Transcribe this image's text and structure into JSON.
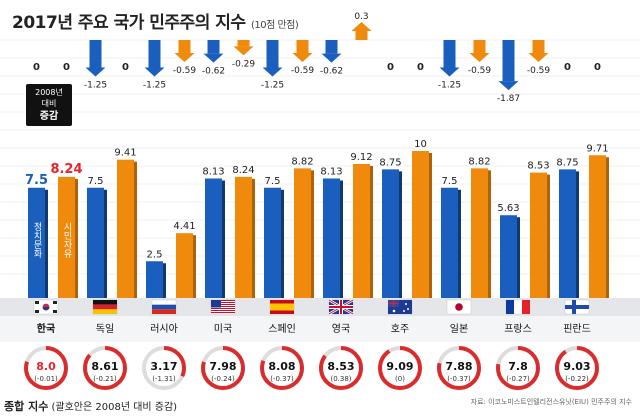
{
  "header": {
    "title": "2017년 주요 국가 민주주의 지수",
    "title_note": "(10점 만점)"
  },
  "legend": {
    "change_box_lines": [
      "2008년",
      "대비"
    ],
    "change_box_bold": "증감",
    "political_culture": "정치문화",
    "civil_liberties": "시민자유"
  },
  "footer": {
    "label": "종합 지수",
    "note": "(괄호안은 2008년 대비 증감)",
    "source": "자료: 이코노미스트인텔리전스유닛(EIU) 민주주의 지수"
  },
  "colors": {
    "political_culture": "#1a5fbd",
    "civil_liberties": "#f08a0c",
    "highlight_value": "#e8242b",
    "ring_red": "#d92d2d"
  },
  "chart_data": {
    "type": "bar",
    "ylim": [
      0,
      10
    ],
    "categories": [
      "한국",
      "독일",
      "러시아",
      "미국",
      "스페인",
      "영국",
      "호주",
      "일본",
      "프랑스",
      "핀란드"
    ],
    "flags": [
      "korea",
      "germany",
      "russia",
      "usa",
      "spain",
      "uk",
      "australia",
      "japan",
      "france",
      "finland"
    ],
    "series": [
      {
        "name": "정치문화",
        "values": [
          7.5,
          7.5,
          2.5,
          8.13,
          7.5,
          8.13,
          8.75,
          7.5,
          5.63,
          8.75
        ],
        "labels": [
          "7.5",
          "7.5",
          "2.5",
          "8.13",
          "7.5",
          "8.13",
          "8.75",
          "7.5",
          "5.63",
          "8.75"
        ],
        "change": [
          0,
          -1.25,
          -1.25,
          -0.62,
          -1.25,
          -0.62,
          0,
          -1.25,
          -1.87,
          0
        ],
        "change_labels": [
          "0",
          "-1.25",
          "-1.25",
          "-0.62",
          "-1.25",
          "-0.62",
          "0",
          "-1.25",
          "-1.87",
          "0"
        ]
      },
      {
        "name": "시민자유",
        "values": [
          8.24,
          9.41,
          4.41,
          8.24,
          8.82,
          9.12,
          10,
          8.82,
          8.53,
          9.71
        ],
        "labels": [
          "8.24",
          "9.41",
          "4.41",
          "8.24",
          "8.82",
          "9.12",
          "10",
          "8.82",
          "8.53",
          "9.71"
        ],
        "change": [
          0,
          0,
          -0.59,
          -0.29,
          -0.59,
          0.3,
          0,
          -0.59,
          -0.59,
          0
        ],
        "change_labels": [
          "0",
          "0",
          "-0.59",
          "-0.29",
          "-0.59",
          "0.3",
          "0",
          "-0.59",
          "-0.59",
          "0"
        ]
      }
    ],
    "overall": {
      "name": "종합 지수",
      "values": [
        8.0,
        8.61,
        3.17,
        7.98,
        8.08,
        8.53,
        9.09,
        7.88,
        7.8,
        9.03
      ],
      "labels": [
        "8.0",
        "8.61",
        "3.17",
        "7.98",
        "8.08",
        "8.53",
        "9.09",
        "7.88",
        "7.8",
        "9.03"
      ],
      "change_labels": [
        "(-0.01)",
        "(-0.21)",
        "(-1.31)",
        "(-0.24)",
        "(-0.37)",
        "(0.38)",
        "(0)",
        "(-0.37)",
        "(-0.27)",
        "(-0.22)"
      ]
    }
  }
}
